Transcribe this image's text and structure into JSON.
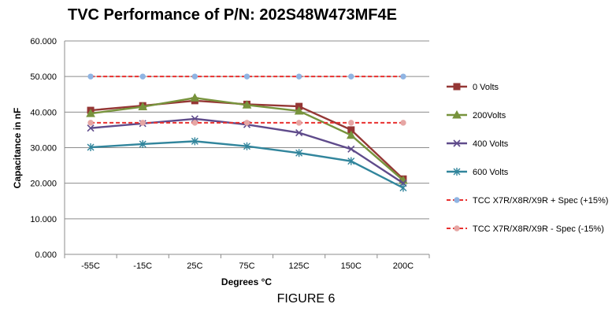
{
  "chart_data": {
    "type": "line",
    "title": "TVC Performance of P/N: 202S48W473MF4E",
    "caption": "FIGURE 6",
    "xlabel": "Degrees °C",
    "ylabel": "Capacitance in nF",
    "categories": [
      "-55C",
      "-15C",
      "25C",
      "75C",
      "125C",
      "150C",
      "200C"
    ],
    "ylim": [
      0,
      60
    ],
    "ytick_step": 10,
    "ytick_labels": [
      "0.000",
      "10.000",
      "20.000",
      "30.000",
      "40.000",
      "50.000",
      "60.000"
    ],
    "grid": "horizontal",
    "legend_position": "right",
    "series": [
      {
        "name": "0 Volts",
        "color": "#953735",
        "marker": "square",
        "dash": false,
        "values": [
          40.5,
          41.8,
          43.2,
          42.2,
          41.6,
          35.0,
          21.2
        ]
      },
      {
        "name": "200Volts",
        "color": "#77933c",
        "marker": "triangle",
        "dash": false,
        "values": [
          39.6,
          41.5,
          44.0,
          42.0,
          40.3,
          33.5,
          20.8
        ]
      },
      {
        "name": "400 Volts",
        "color": "#5f4b8b",
        "marker": "x",
        "dash": false,
        "values": [
          35.5,
          36.8,
          38.1,
          36.5,
          34.2,
          29.6,
          20.0
        ]
      },
      {
        "name": "600 Volts",
        "color": "#31859c",
        "marker": "asterisk",
        "dash": false,
        "values": [
          30.1,
          31.0,
          31.8,
          30.4,
          28.5,
          26.2,
          18.7
        ]
      },
      {
        "name": "TCC X7R/X8R/X9R + Spec (+15%)",
        "color": "#e8302f",
        "marker": "circle",
        "marker_color": "#8fb4e3",
        "dash": true,
        "values": [
          50.0,
          50.0,
          50.0,
          50.0,
          50.0,
          50.0,
          50.0
        ]
      },
      {
        "name": "TCC X7R/X8R/X9R - Spec (-15%)",
        "color": "#e8302f",
        "marker": "circle",
        "marker_color": "#e6a6a4",
        "dash": true,
        "values": [
          37.0,
          37.0,
          37.0,
          37.0,
          37.0,
          37.0,
          37.0
        ]
      }
    ]
  }
}
